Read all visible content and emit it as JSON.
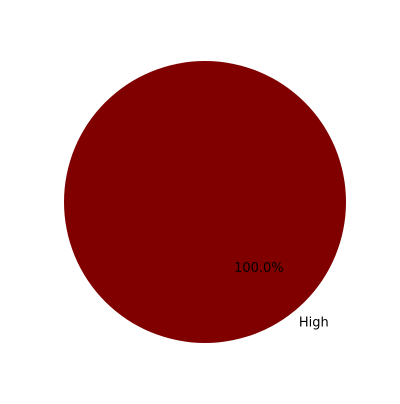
{
  "chart_data": {
    "type": "pie",
    "slices": [
      {
        "label": "High",
        "value": 100.0,
        "pct_label": "100.0%",
        "color": "#800000"
      }
    ],
    "title": ""
  }
}
